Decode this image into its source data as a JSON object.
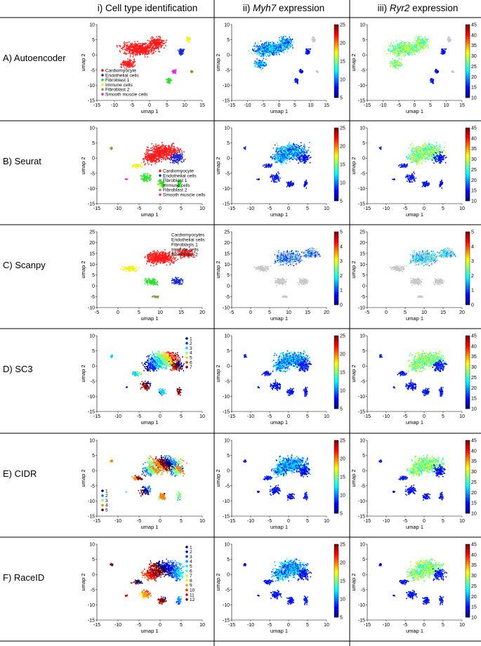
{
  "headers": [
    "i) Cell type identification",
    "ii) ",
    "iii) "
  ],
  "header_genes": [
    "Myh7",
    "Ryr2"
  ],
  "header_suffix": " expression",
  "rows": [
    {
      "label": "A) Autoencoder",
      "xlim": [
        -15,
        15
      ],
      "xticks": [
        -15,
        -10,
        -5,
        0,
        5,
        10,
        15
      ],
      "ylim": [
        -15,
        10
      ],
      "yticks": [
        -15,
        -10,
        -5,
        0,
        5,
        10
      ],
      "method": "cell",
      "legend": [
        "Cardiomyocyte",
        "Endothelial cells",
        "Fibroblast 1",
        "Immune cells",
        "Fibroblast 2",
        "Smooth muscle cells"
      ],
      "legend_pos": "bottom-left",
      "myh7_range": [
        5,
        25
      ],
      "myh7_ticks": [
        5,
        10,
        15,
        20,
        25
      ],
      "ryr2_range": [
        10,
        45
      ],
      "ryr2_ticks": [
        10,
        15,
        20,
        25,
        30,
        35,
        40,
        45
      ]
    },
    {
      "label": "B) Seurat",
      "xlim": [
        -15,
        10
      ],
      "xticks": [
        -15,
        -10,
        -5,
        0,
        5,
        10
      ],
      "ylim": [
        -15,
        10
      ],
      "yticks": [
        -15,
        -10,
        -5,
        0,
        5,
        10
      ],
      "method": "cell",
      "legend": [
        "Cardiomyocyte",
        "Endothelial cells",
        "Fibroblast 1",
        "Immune cells",
        "Fibroblast 2",
        "Smooth muscle cells"
      ],
      "legend_pos": "bottom-right",
      "myh7_range": [
        5,
        25
      ],
      "myh7_ticks": [
        5,
        10,
        15,
        20,
        25
      ],
      "ryr2_range": [
        10,
        45
      ],
      "ryr2_ticks": [
        10,
        15,
        20,
        25,
        30,
        35,
        40,
        45
      ]
    },
    {
      "label": "C) Scanpy",
      "xlim": [
        -5,
        20
      ],
      "xticks": [
        -5,
        0,
        5,
        10,
        15,
        20
      ],
      "ylim": [
        -10,
        25
      ],
      "yticks": [
        -10,
        -5,
        0,
        5,
        10,
        15,
        20,
        25
      ],
      "method": "scanpy",
      "legend": [
        "Cardiomyocytes",
        "Endothelial cells",
        "Fibroblasts 1",
        "Immune cells",
        "Fibroblasts 2"
      ],
      "legend_pos": "top-right",
      "myh7_range": [
        0,
        5
      ],
      "myh7_ticks": [
        0,
        1,
        2,
        3,
        4,
        5
      ],
      "ryr2_range": [
        0,
        5
      ],
      "ryr2_ticks": [
        0,
        1,
        2,
        3,
        4,
        5
      ]
    },
    {
      "label": "D) SC3",
      "xlim": [
        -15,
        10
      ],
      "xticks": [
        -15,
        -10,
        -5,
        0,
        5,
        10
      ],
      "ylim": [
        -15,
        10
      ],
      "yticks": [
        -15,
        -10,
        -5,
        0,
        5,
        10
      ],
      "method": "cluster",
      "legend": [
        "1",
        "2",
        "3",
        "4",
        "5",
        "6",
        "7"
      ],
      "legend_pos": "top-right",
      "myh7_range": [
        5,
        25
      ],
      "myh7_ticks": [
        5,
        10,
        15,
        20,
        25
      ],
      "ryr2_range": [
        10,
        45
      ],
      "ryr2_ticks": [
        10,
        15,
        20,
        25,
        30,
        35,
        40,
        45
      ]
    },
    {
      "label": "E) CIDR",
      "xlim": [
        -15,
        10
      ],
      "xticks": [
        -15,
        -10,
        -5,
        0,
        5,
        10
      ],
      "ylim": [
        -15,
        10
      ],
      "yticks": [
        -15,
        -10,
        -5,
        0,
        5,
        10
      ],
      "method": "cluster",
      "legend": [
        "1",
        "2",
        "3",
        "4",
        "5"
      ],
      "legend_pos": "bottom-left",
      "myh7_range": [
        5,
        25
      ],
      "myh7_ticks": [
        5,
        10,
        15,
        20,
        25
      ],
      "ryr2_range": [
        10,
        45
      ],
      "ryr2_ticks": [
        10,
        15,
        20,
        25,
        30,
        35,
        40,
        45
      ]
    },
    {
      "label": "F) RaceID",
      "xlim": [
        -15,
        10
      ],
      "xticks": [
        -15,
        -10,
        -5,
        0,
        5,
        10
      ],
      "ylim": [
        -15,
        10
      ],
      "yticks": [
        -15,
        -10,
        -5,
        0,
        5,
        10
      ],
      "method": "cluster",
      "legend": [
        "1",
        "2",
        "3",
        "4",
        "5",
        "6",
        "7",
        "8",
        "9",
        "10",
        "11",
        "12"
      ],
      "legend_pos": "top-right",
      "myh7_range": [
        5,
        25
      ],
      "myh7_ticks": [
        5,
        10,
        15,
        20,
        25
      ],
      "ryr2_range": [
        10,
        45
      ],
      "ryr2_ticks": [
        10,
        15,
        20,
        25,
        30,
        35,
        40,
        45
      ]
    }
  ],
  "axis_labels": {
    "x": "umap 1",
    "y": "umap 2"
  },
  "colors": {
    "cell_types": [
      "#ff1a1a",
      "#1428d8",
      "#2ee02e",
      "#f2f21a",
      "#7aa23a",
      "#e02ad8"
    ],
    "background": "#c8c8c8",
    "jet": [
      "#00007f",
      "#0000ff",
      "#0080ff",
      "#00ffff",
      "#80ff80",
      "#ffff00",
      "#ff8000",
      "#ff0000",
      "#7f0000"
    ]
  },
  "chart_data": {
    "type": "scatter",
    "description_panels": "6 rows x 3 columns of UMAP scatter plots",
    "x_axis": "umap 1",
    "y_axis": "umap 2"
  }
}
